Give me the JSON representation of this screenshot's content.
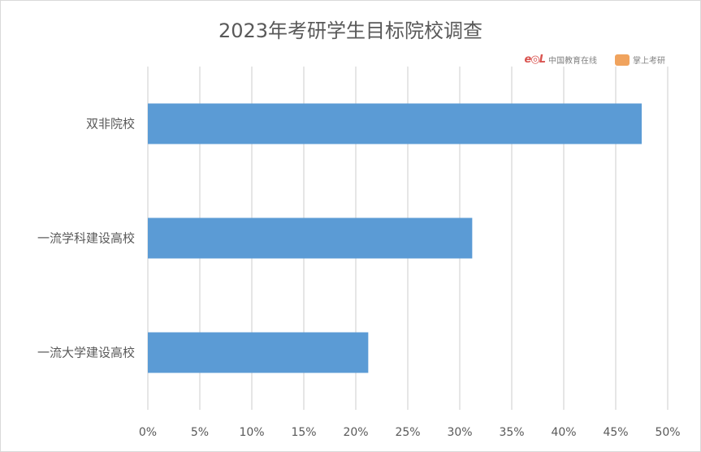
{
  "chart_data": {
    "type": "bar",
    "orientation": "horizontal",
    "title": "2023年考研学生目标院校调查",
    "categories": [
      "双非院校",
      "一流学科建设高校",
      "一流大学建设高校"
    ],
    "values": [
      47.5,
      31.2,
      21.2
    ],
    "xlim": [
      0,
      50
    ],
    "xticks": [
      "0%",
      "5%",
      "10%",
      "15%",
      "20%",
      "25%",
      "30%",
      "35%",
      "40%",
      "45%",
      "50%"
    ],
    "grid": "vertical",
    "bar_color": "#5b9bd5",
    "grid_color": "#d9d9d9"
  },
  "logos": {
    "eol_text": "中国教育在线",
    "shouhou_text": "掌上考研"
  }
}
